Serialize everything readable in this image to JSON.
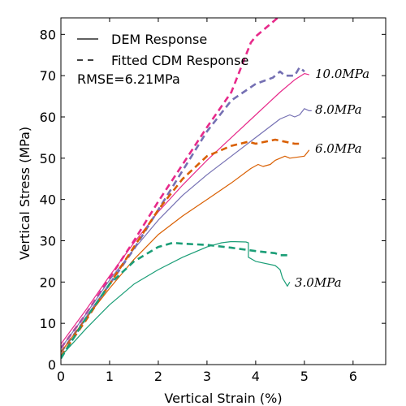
{
  "chart_data": {
    "type": "line",
    "xlabel": "Vertical Strain (%)",
    "ylabel": "Vertical Stress (MPa)",
    "xlim": [
      0,
      6.67
    ],
    "ylim": [
      0,
      84
    ],
    "x_ticks": [
      "0",
      "1",
      "2",
      "3",
      "4",
      "5",
      "6"
    ],
    "y_ticks": [
      "0",
      "10",
      "20",
      "30",
      "40",
      "50",
      "60",
      "70",
      "80"
    ],
    "grid": false,
    "legend": {
      "placement": "top-left",
      "entries": [
        {
          "label": "DEM Response",
          "style": "solid"
        },
        {
          "label": "Fitted CDM Response",
          "style": "dashed"
        }
      ]
    },
    "rmse_label": "RMSE=6.21MPa",
    "series": [
      {
        "label": "10.0MPa",
        "color": "#e7298a",
        "dem": [
          [
            0,
            5
          ],
          [
            0.5,
            13
          ],
          [
            1,
            21.5
          ],
          [
            1.5,
            29.5
          ],
          [
            2,
            37
          ],
          [
            2.5,
            43.5
          ],
          [
            3,
            49.5
          ],
          [
            3.5,
            55
          ],
          [
            4,
            60.5
          ],
          [
            4.5,
            66
          ],
          [
            4.8,
            69
          ],
          [
            5,
            70.5
          ],
          [
            5.1,
            70.2
          ]
        ],
        "cdm": [
          [
            0,
            4
          ],
          [
            0.5,
            12
          ],
          [
            1,
            21
          ],
          [
            1.5,
            30
          ],
          [
            2,
            39.5
          ],
          [
            2.5,
            48.5
          ],
          [
            3,
            57.5
          ],
          [
            3.5,
            66
          ],
          [
            3.9,
            78
          ],
          [
            4,
            79.5
          ],
          [
            4.5,
            84.5
          ]
        ]
      },
      {
        "label": "8.0MPa",
        "color": "#7570b3",
        "dem": [
          [
            0,
            4
          ],
          [
            0.5,
            12
          ],
          [
            1,
            20.5
          ],
          [
            1.5,
            28
          ],
          [
            2,
            35
          ],
          [
            2.5,
            41
          ],
          [
            3,
            46
          ],
          [
            3.5,
            50.5
          ],
          [
            4,
            55
          ],
          [
            4.5,
            59.5
          ],
          [
            4.7,
            60.5
          ],
          [
            4.8,
            60
          ],
          [
            4.9,
            60.5
          ],
          [
            5,
            62
          ],
          [
            5.1,
            61.5
          ],
          [
            5.15,
            61.5
          ]
        ],
        "cdm": [
          [
            0,
            3
          ],
          [
            0.5,
            11
          ],
          [
            1,
            19.5
          ],
          [
            1.5,
            28
          ],
          [
            2,
            37.5
          ],
          [
            2.5,
            47
          ],
          [
            3,
            56.5
          ],
          [
            3.5,
            64
          ],
          [
            4,
            68
          ],
          [
            4.35,
            69.5
          ],
          [
            4.5,
            71
          ],
          [
            4.6,
            70
          ],
          [
            4.8,
            70
          ],
          [
            4.9,
            72
          ],
          [
            5,
            71
          ]
        ]
      },
      {
        "label": "6.0MPa",
        "color": "#d95f02",
        "dem": [
          [
            0,
            3
          ],
          [
            0.5,
            11
          ],
          [
            1,
            18.5
          ],
          [
            1.5,
            25.5
          ],
          [
            2,
            31.5
          ],
          [
            2.5,
            36
          ],
          [
            3,
            40
          ],
          [
            3.5,
            44
          ],
          [
            3.9,
            47.5
          ],
          [
            4.05,
            48.5
          ],
          [
            4.15,
            48
          ],
          [
            4.3,
            48.5
          ],
          [
            4.4,
            49.5
          ],
          [
            4.6,
            50.5
          ],
          [
            4.7,
            50
          ],
          [
            5,
            50.5
          ],
          [
            5.1,
            52
          ]
        ],
        "cdm": [
          [
            0,
            2
          ],
          [
            0.5,
            10.5
          ],
          [
            1,
            19.5
          ],
          [
            1.5,
            28.5
          ],
          [
            2,
            37.5
          ],
          [
            2.5,
            45
          ],
          [
            3,
            50.5
          ],
          [
            3.5,
            53
          ],
          [
            3.85,
            54
          ],
          [
            4,
            53.5
          ],
          [
            4.2,
            54
          ],
          [
            4.4,
            54.5
          ],
          [
            4.6,
            54
          ],
          [
            4.8,
            53.5
          ],
          [
            4.95,
            53.5
          ]
        ]
      },
      {
        "label": "3.0MPa",
        "color": "#1b9e77",
        "dem": [
          [
            0,
            2
          ],
          [
            0.5,
            8.5
          ],
          [
            1,
            14.5
          ],
          [
            1.5,
            19.5
          ],
          [
            2,
            23
          ],
          [
            2.5,
            26
          ],
          [
            3,
            28.5
          ],
          [
            3.3,
            29.5
          ],
          [
            3.5,
            29.8
          ],
          [
            3.8,
            29.7
          ],
          [
            3.85,
            29.5
          ],
          [
            3.85,
            26
          ],
          [
            4,
            25
          ],
          [
            4.4,
            24
          ],
          [
            4.5,
            23
          ],
          [
            4.55,
            21
          ],
          [
            4.6,
            20
          ],
          [
            4.65,
            19
          ],
          [
            4.7,
            20
          ]
        ],
        "cdm": [
          [
            0,
            1.5
          ],
          [
            0.5,
            11
          ],
          [
            1,
            19.5
          ],
          [
            1.5,
            25
          ],
          [
            2,
            28.5
          ],
          [
            2.3,
            29.5
          ],
          [
            2.5,
            29.3
          ],
          [
            3,
            29
          ],
          [
            3.5,
            28.3
          ],
          [
            4,
            27.5
          ],
          [
            4.4,
            27
          ],
          [
            4.5,
            26.5
          ],
          [
            4.65,
            26.5
          ]
        ]
      }
    ]
  }
}
